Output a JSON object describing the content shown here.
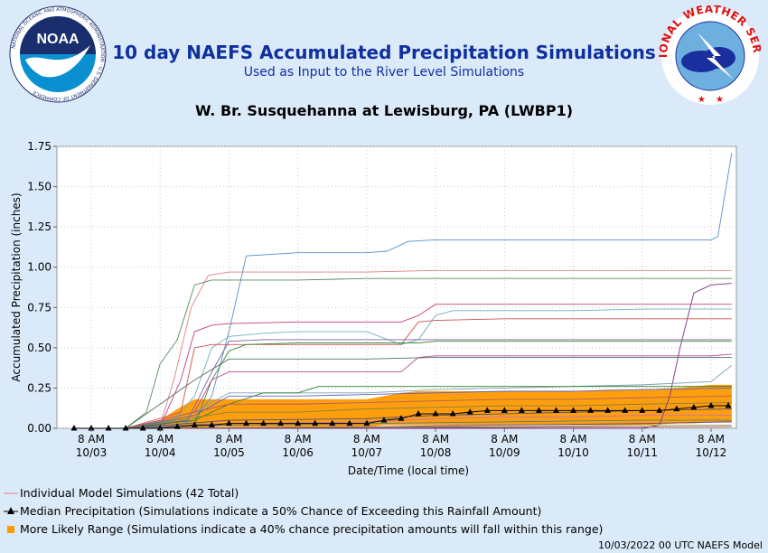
{
  "header": {
    "title": "10 day NAEFS Accumulated Precipitation Simulations",
    "subtitle": "Used as Input to the River Level Simulations",
    "location": "W. Br. Susquehanna at Lewisburg, PA (LWBP1)"
  },
  "logos": {
    "noaa_text": "NOAA",
    "noaa_ring": "NATIONAL OCEANIC AND ATMOSPHERIC ADMINISTRATION · U.S. DEPARTMENT OF COMMERCE",
    "nws_ring": "NATIONAL WEATHER SERVICE"
  },
  "colors": {
    "band": "#ff9900",
    "median": "#000000",
    "background": "#dbeaf8",
    "title": "#1030a0"
  },
  "legend": {
    "individual": "Individual Model Simulations (42 Total)",
    "median": "Median Precipitation (Simulations indicate a 50% Chance of Exceeding this Rainfall Amount)",
    "range": "More Likely Range (Simulations indicate a 40% chance precipitation amounts will fall within this range)"
  },
  "footer": "10/03/2022 00 UTC NAEFS Model",
  "chart_data": {
    "type": "line",
    "xlabel": "Date/Time (local time)",
    "ylabel": "Accumulated Precipitation (inches)",
    "ylim": [
      0,
      1.75
    ],
    "yticks": [
      "0.00",
      "0.25",
      "0.50",
      "0.75",
      "1.00",
      "1.25",
      "1.50",
      "1.75"
    ],
    "xticks": [
      {
        "time": "8 AM",
        "date": "10/03"
      },
      {
        "time": "8 AM",
        "date": "10/04"
      },
      {
        "time": "8 AM",
        "date": "10/05"
      },
      {
        "time": "8 AM",
        "date": "10/06"
      },
      {
        "time": "8 AM",
        "date": "10/07"
      },
      {
        "time": "8 AM",
        "date": "10/08"
      },
      {
        "time": "8 AM",
        "date": "10/09"
      },
      {
        "time": "8 AM",
        "date": "10/10"
      },
      {
        "time": "8 AM",
        "date": "10/11"
      },
      {
        "time": "8 AM",
        "date": "10/12"
      }
    ],
    "grid": true,
    "x_unit": "days after 8 AM 10/03",
    "median": {
      "x": [
        -0.25,
        0,
        0.25,
        0.5,
        0.75,
        1,
        1.25,
        1.5,
        1.75,
        2,
        2.25,
        2.5,
        2.75,
        3,
        3.25,
        3.5,
        3.75,
        4,
        4.25,
        4.5,
        4.75,
        5,
        5.25,
        5.5,
        5.75,
        6,
        6.25,
        6.5,
        6.75,
        7,
        7.25,
        7.5,
        7.75,
        8,
        8.25,
        8.5,
        8.75,
        9,
        9.25
      ],
      "y": [
        0,
        0,
        0,
        0,
        0,
        0,
        0.01,
        0.02,
        0.02,
        0.03,
        0.03,
        0.03,
        0.03,
        0.03,
        0.03,
        0.03,
        0.03,
        0.03,
        0.05,
        0.06,
        0.09,
        0.09,
        0.09,
        0.1,
        0.11,
        0.11,
        0.11,
        0.11,
        0.11,
        0.11,
        0.11,
        0.11,
        0.11,
        0.11,
        0.11,
        0.12,
        0.13,
        0.14,
        0.14
      ]
    },
    "band": {
      "x": [
        0.5,
        0.75,
        1,
        1.25,
        1.5,
        1.75,
        2,
        2.5,
        3,
        3.5,
        4,
        4.25,
        4.5,
        4.75,
        5,
        5.5,
        6,
        6.5,
        7,
        7.5,
        8,
        8.5,
        8.75,
        9,
        9.3
      ],
      "lower": [
        0,
        0,
        0,
        0,
        0,
        0.01,
        0.01,
        0.01,
        0.01,
        0.01,
        0.01,
        0.02,
        0.02,
        0.02,
        0.02,
        0.02,
        0.02,
        0.02,
        0.02,
        0.02,
        0.02,
        0.03,
        0.03,
        0.04,
        0.04
      ],
      "upper": [
        0.01,
        0.02,
        0.05,
        0.12,
        0.18,
        0.18,
        0.18,
        0.18,
        0.18,
        0.18,
        0.18,
        0.2,
        0.22,
        0.23,
        0.23,
        0.23,
        0.23,
        0.23,
        0.23,
        0.24,
        0.24,
        0.25,
        0.26,
        0.27,
        0.27
      ]
    },
    "series": [
      {
        "color": "#5b8fc9",
        "x": [
          0.5,
          1,
          1.25,
          1.5,
          1.75,
          2,
          2.25,
          3,
          4,
          4.3,
          4.6,
          5,
          6,
          7,
          8,
          8.5,
          9,
          9.1,
          9.3
        ],
        "y": [
          0,
          0,
          0.02,
          0.05,
          0.2,
          0.6,
          1.07,
          1.09,
          1.09,
          1.1,
          1.16,
          1.17,
          1.17,
          1.17,
          1.17,
          1.17,
          1.17,
          1.19,
          1.71
        ]
      },
      {
        "color": "#e08080",
        "x": [
          0.5,
          1,
          1.2,
          1.45,
          1.7,
          2,
          3,
          4,
          5,
          6,
          7,
          8,
          9,
          9.3
        ],
        "y": [
          0,
          0.02,
          0.3,
          0.75,
          0.95,
          0.97,
          0.97,
          0.97,
          0.98,
          0.98,
          0.98,
          0.98,
          0.98,
          0.98
        ]
      },
      {
        "color": "#5a8a5a",
        "x": [
          0.5,
          0.8,
          1,
          1.25,
          1.5,
          1.75,
          2,
          3,
          4,
          5,
          6,
          7,
          8,
          9,
          9.3
        ],
        "y": [
          0,
          0.1,
          0.4,
          0.55,
          0.89,
          0.92,
          0.92,
          0.92,
          0.93,
          0.93,
          0.93,
          0.93,
          0.93,
          0.93,
          0.93
        ]
      },
      {
        "color": "#7a3080",
        "x": [
          0.5,
          8,
          8.25,
          8.4,
          8.55,
          8.75,
          9,
          9.3
        ],
        "y": [
          0,
          0,
          0.02,
          0.2,
          0.5,
          0.84,
          0.89,
          0.9
        ]
      },
      {
        "color": "#c04080",
        "x": [
          0.5,
          1,
          1.3,
          1.5,
          1.75,
          2,
          3,
          4,
          4.5,
          4.75,
          5,
          6,
          7,
          8,
          9.3
        ],
        "y": [
          0,
          0.01,
          0.3,
          0.6,
          0.64,
          0.65,
          0.66,
          0.66,
          0.66,
          0.7,
          0.77,
          0.77,
          0.77,
          0.77,
          0.77
        ]
      },
      {
        "color": "#70b0c0",
        "x": [
          0.5,
          1.2,
          1.5,
          1.75,
          2,
          2.5,
          3,
          4,
          4.5,
          4.75,
          5,
          5.25,
          6,
          7,
          8,
          9,
          9.3
        ],
        "y": [
          0,
          0.05,
          0.2,
          0.5,
          0.57,
          0.59,
          0.6,
          0.6,
          0.52,
          0.55,
          0.7,
          0.73,
          0.73,
          0.73,
          0.74,
          0.74,
          0.74
        ]
      },
      {
        "color": "#d05050",
        "x": [
          0.5,
          1.3,
          1.5,
          1.75,
          2,
          3,
          4,
          4.5,
          4.75,
          5,
          6,
          7,
          8,
          9,
          9.3
        ],
        "y": [
          0,
          0.1,
          0.5,
          0.52,
          0.52,
          0.52,
          0.52,
          0.52,
          0.66,
          0.67,
          0.68,
          0.68,
          0.68,
          0.68,
          0.68
        ]
      },
      {
        "color": "#3a8a3a",
        "x": [
          0.5,
          1.5,
          1.75,
          2,
          2.25,
          3,
          4,
          4.25,
          4.5,
          4.75,
          5,
          6,
          7,
          8,
          9.3
        ],
        "y": [
          0,
          0.02,
          0.3,
          0.48,
          0.52,
          0.53,
          0.53,
          0.53,
          0.53,
          0.53,
          0.54,
          0.54,
          0.54,
          0.54,
          0.54
        ]
      },
      {
        "color": "#8060a0",
        "x": [
          0.5,
          1.4,
          1.75,
          2,
          2.5,
          3,
          4,
          4.5,
          5,
          6,
          7,
          8,
          9,
          9.3
        ],
        "y": [
          0,
          0.05,
          0.35,
          0.54,
          0.55,
          0.55,
          0.55,
          0.55,
          0.55,
          0.55,
          0.55,
          0.55,
          0.55,
          0.55
        ]
      },
      {
        "color": "#b84a90",
        "x": [
          0.5,
          1.5,
          1.75,
          2,
          3,
          4,
          4.5,
          4.75,
          5,
          6,
          7,
          8,
          9,
          9.3
        ],
        "y": [
          0,
          0.1,
          0.3,
          0.35,
          0.35,
          0.35,
          0.35,
          0.44,
          0.45,
          0.45,
          0.45,
          0.45,
          0.45,
          0.46
        ]
      },
      {
        "color": "#507060",
        "x": [
          0.5,
          1.5,
          2,
          2.5,
          3,
          4,
          5,
          6,
          7,
          8,
          9,
          9.3
        ],
        "y": [
          0,
          0.3,
          0.43,
          0.43,
          0.43,
          0.43,
          0.44,
          0.44,
          0.44,
          0.44,
          0.44,
          0.44
        ]
      },
      {
        "color": "#7aa0b0",
        "x": [
          0.5,
          1.5,
          2,
          2.5,
          3,
          4,
          5,
          6,
          7,
          8,
          9,
          9.3
        ],
        "y": [
          0,
          0.1,
          0.22,
          0.22,
          0.22,
          0.22,
          0.24,
          0.25,
          0.26,
          0.27,
          0.29,
          0.39
        ]
      },
      {
        "color": "#308030",
        "x": [
          0.5,
          1.5,
          2,
          2.5,
          3,
          3.3,
          4,
          5,
          6,
          7,
          8,
          9.3
        ],
        "y": [
          0,
          0.05,
          0.15,
          0.22,
          0.22,
          0.26,
          0.26,
          0.26,
          0.26,
          0.26,
          0.26,
          0.26
        ]
      },
      {
        "color": "#6060c0",
        "x": [
          0.5,
          1.5,
          2,
          3,
          4,
          5,
          6,
          7,
          8,
          9.3
        ],
        "y": [
          0,
          0.08,
          0.2,
          0.2,
          0.21,
          0.22,
          0.23,
          0.23,
          0.24,
          0.25
        ]
      },
      {
        "color": "#b06060",
        "x": [
          0.5,
          2,
          3,
          4,
          5,
          6,
          7,
          8,
          9.3
        ],
        "y": [
          0,
          0.15,
          0.15,
          0.16,
          0.17,
          0.18,
          0.18,
          0.19,
          0.2
        ]
      },
      {
        "color": "#808040",
        "x": [
          0.5,
          2,
          3,
          4,
          5,
          6,
          7,
          8,
          9.3
        ],
        "y": [
          0,
          0.1,
          0.1,
          0.12,
          0.13,
          0.14,
          0.14,
          0.15,
          0.16
        ]
      },
      {
        "color": "#405080",
        "x": [
          0.5,
          2,
          4,
          5,
          6,
          7,
          8,
          9.3
        ],
        "y": [
          0,
          0.05,
          0.06,
          0.08,
          0.09,
          0.1,
          0.11,
          0.12
        ]
      },
      {
        "color": "#c070c0",
        "x": [
          0.5,
          2,
          4,
          5,
          6,
          7,
          8,
          9.3
        ],
        "y": [
          0,
          0.03,
          0.04,
          0.06,
          0.07,
          0.07,
          0.08,
          0.08
        ]
      },
      {
        "color": "#508080",
        "x": [
          0.5,
          2,
          4,
          6,
          8,
          9.3
        ],
        "y": [
          0,
          0.02,
          0.03,
          0.04,
          0.05,
          0.05
        ]
      },
      {
        "color": "#604080",
        "x": [
          0.5,
          4,
          6,
          8,
          9.3
        ],
        "y": [
          0,
          0.01,
          0.02,
          0.03,
          0.04
        ]
      },
      {
        "color": "#90a050",
        "x": [
          0.5,
          4,
          6,
          8,
          9.3
        ],
        "y": [
          0,
          0.01,
          0.01,
          0.02,
          0.02
        ]
      },
      {
        "color": "#a04040",
        "x": [
          0.5,
          9.3
        ],
        "y": [
          0,
          0.01
        ]
      }
    ]
  }
}
